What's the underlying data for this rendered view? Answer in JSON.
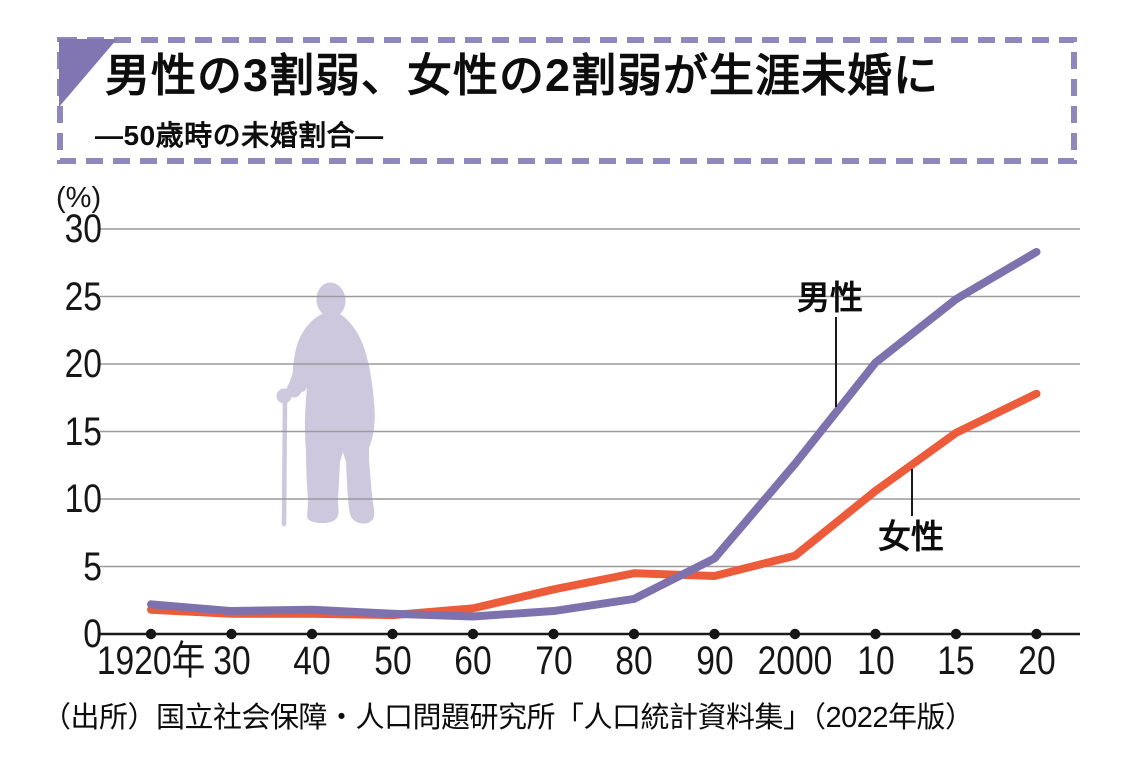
{
  "header": {
    "title": "男性の3割弱、女性の2割弱が生涯未婚に",
    "subtitle": "―50歳時の未婚割合―"
  },
  "chart_data": {
    "type": "line",
    "title": "50歳時の未婚割合",
    "ylabel": "(%)",
    "xlabel": "",
    "ylim": [
      0,
      30
    ],
    "grid": "horizontal",
    "legend": "inline-annotations",
    "categories": [
      "1920年",
      "30",
      "40",
      "50",
      "60",
      "70",
      "80",
      "90",
      "2000",
      "10",
      "15",
      "20"
    ],
    "y_ticks": [
      30,
      25,
      20,
      15,
      10,
      5,
      0
    ],
    "series": [
      {
        "name": "男性",
        "color": "#7e72ae",
        "values": [
          2.2,
          1.7,
          1.8,
          1.5,
          1.3,
          1.7,
          2.6,
          5.6,
          12.6,
          20.1,
          24.8,
          28.3
        ]
      },
      {
        "name": "女性",
        "color": "#ec5b3a",
        "values": [
          1.8,
          1.5,
          1.5,
          1.4,
          1.9,
          3.3,
          4.5,
          4.3,
          5.8,
          10.6,
          14.9,
          17.8
        ]
      }
    ]
  },
  "source": "（出所）国立社会保障・人口問題研究所「人口統計資料集」（2022年版）",
  "decorations": {
    "silhouette": "elderly-person-with-cane",
    "silhouette_color": "#cdc8de",
    "accent_color": "#8176b2",
    "border_color": "#8f88bc",
    "grid_color": "#9b9b9b",
    "axis_color": "#1a1a1a"
  }
}
